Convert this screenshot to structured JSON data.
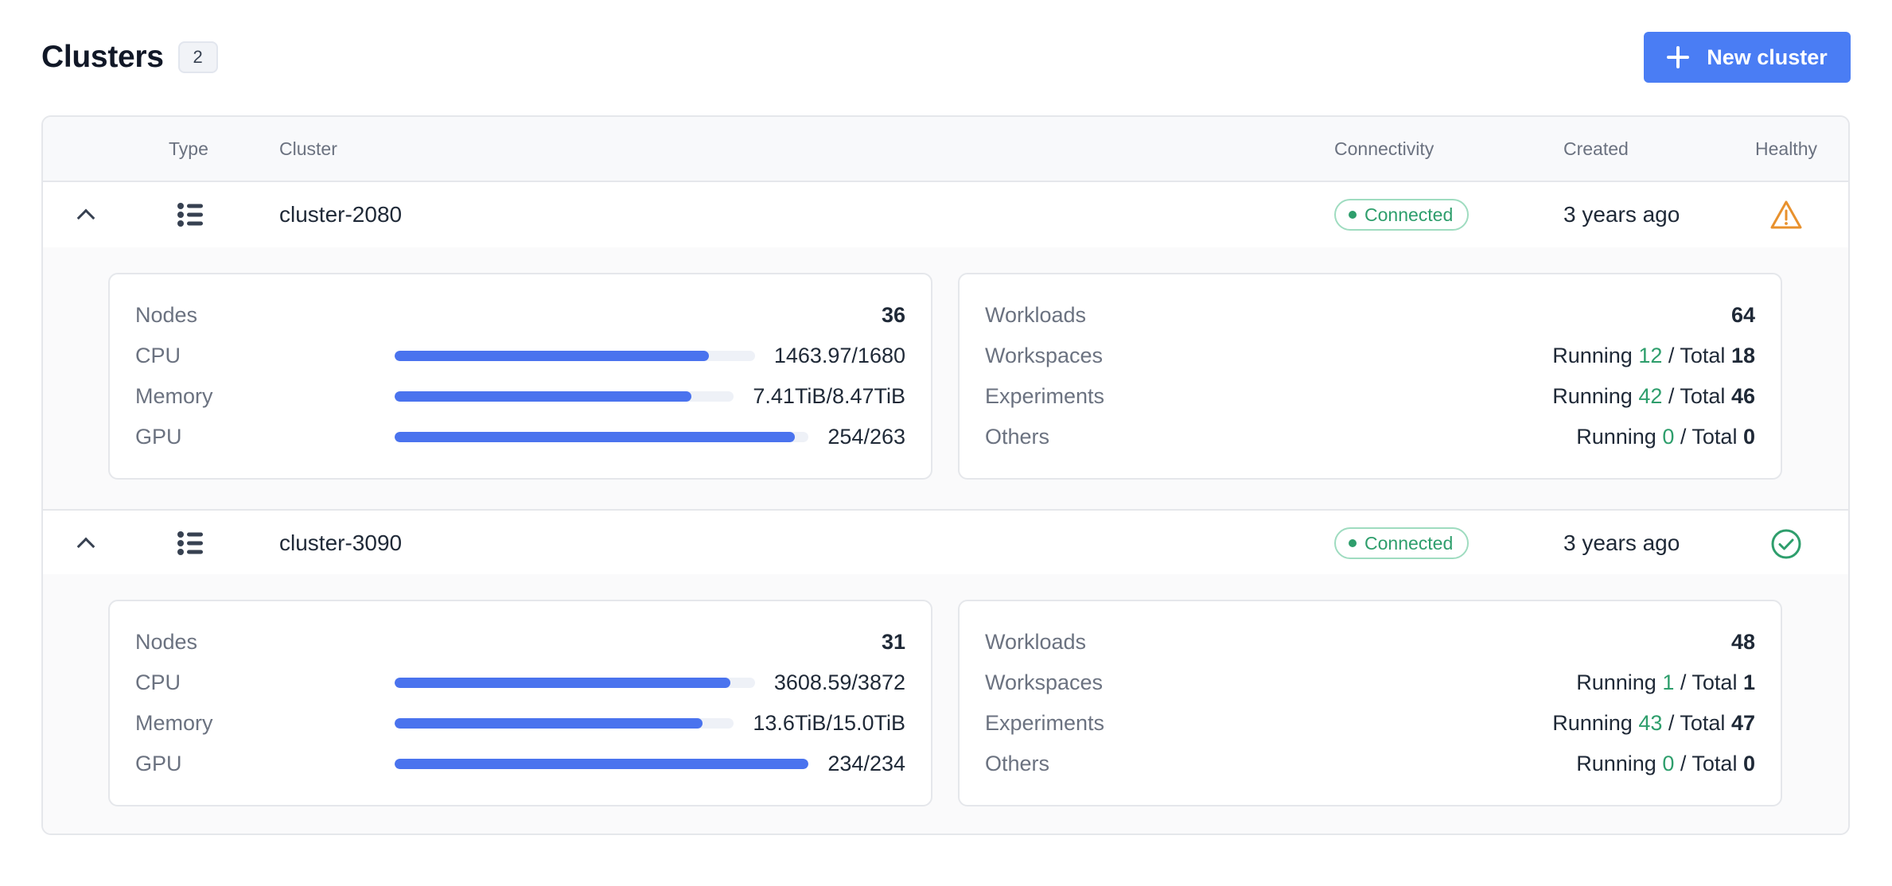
{
  "header": {
    "title": "Clusters",
    "count": "2",
    "new_button_label": "New cluster"
  },
  "table": {
    "columns": {
      "type": "Type",
      "cluster": "Cluster",
      "connectivity": "Connectivity",
      "created": "Created",
      "healthy": "Healthy"
    }
  },
  "clusters": [
    {
      "name": "cluster-2080",
      "connectivity": "Connected",
      "created": "3 years ago",
      "health_icon": "warning-triangle-icon",
      "resources": {
        "nodes_label": "Nodes",
        "nodes": "36",
        "cpu_label": "CPU",
        "cpu": "1463.97/1680",
        "cpu_fraction": 0.8714,
        "memory_label": "Memory",
        "memory": "7.41TiB/8.47TiB",
        "memory_fraction": 0.8749,
        "gpu_label": "GPU",
        "gpu": "254/263",
        "gpu_fraction": 0.9658
      },
      "workloads": {
        "workloads_label": "Workloads",
        "workloads": "64",
        "workspaces_label": "Workspaces",
        "workspaces_running": "12",
        "workspaces_total": "18",
        "experiments_label": "Experiments",
        "experiments_running": "42",
        "experiments_total": "46",
        "others_label": "Others",
        "others_running": "0",
        "others_total": "0"
      }
    },
    {
      "name": "cluster-3090",
      "connectivity": "Connected",
      "created": "3 years ago",
      "health_icon": "check-circle-icon",
      "resources": {
        "nodes_label": "Nodes",
        "nodes": "31",
        "cpu_label": "CPU",
        "cpu": "3608.59/3872",
        "cpu_fraction": 0.932,
        "memory_label": "Memory",
        "memory": "13.6TiB/15.0TiB",
        "memory_fraction": 0.9067,
        "gpu_label": "GPU",
        "gpu": "234/234",
        "gpu_fraction": 1.0
      },
      "workloads": {
        "workloads_label": "Workloads",
        "workloads": "48",
        "workspaces_label": "Workspaces",
        "workspaces_running": "1",
        "workspaces_total": "1",
        "experiments_label": "Experiments",
        "experiments_running": "43",
        "experiments_total": "47",
        "others_label": "Others",
        "others_running": "0",
        "others_total": "0"
      }
    }
  ],
  "labels": {
    "running": "Running",
    "total": "/ Total"
  },
  "colors": {
    "accent": "#4a7df4",
    "bar": "#4a73ee",
    "success": "#2e9e6c",
    "warning": "#e8912d"
  }
}
